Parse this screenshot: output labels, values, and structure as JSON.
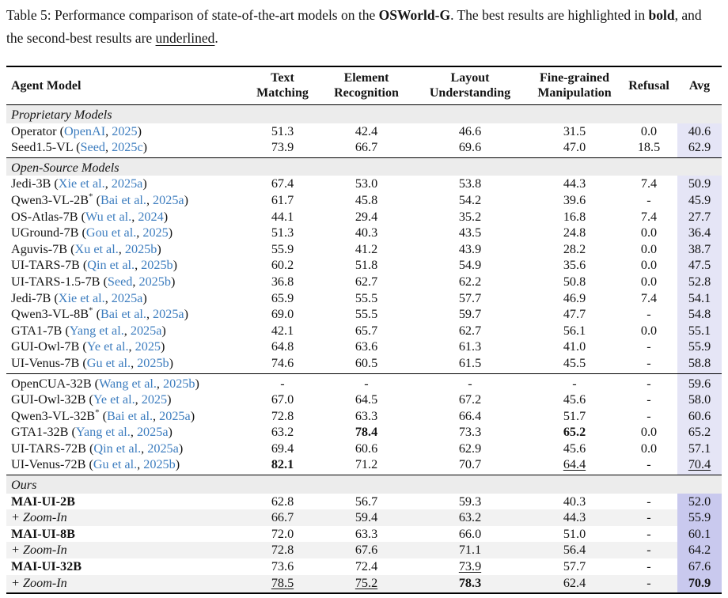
{
  "caption": {
    "parts": [
      {
        "text": "Table 5: Performance comparison of state-of-the-art models on the ",
        "style": "normal"
      },
      {
        "text": "OSWorld-G",
        "style": "bold"
      },
      {
        "text": ". The best results are highlighted in ",
        "style": "normal"
      },
      {
        "text": "bold",
        "style": "bold"
      },
      {
        "text": ", and the second-best results are ",
        "style": "normal"
      },
      {
        "text": "underlined",
        "style": "underline"
      },
      {
        "text": ".",
        "style": "normal"
      }
    ]
  },
  "colors": {
    "citation_blue": "#3d7dbf",
    "section_row_bg": "#ececec",
    "zoom_row_bg": "#f2f2f2",
    "avg_col_bg": "#e5e5f6",
    "avg_col_bg_ours": "#c9c9ee",
    "rule_color": "#000000"
  },
  "table": {
    "columns": [
      {
        "id": "model",
        "lines": [
          "Agent Model"
        ]
      },
      {
        "id": "text-matching",
        "lines": [
          "Text",
          "Matching"
        ]
      },
      {
        "id": "element-recognition",
        "lines": [
          "Element",
          "Recognition"
        ]
      },
      {
        "id": "layout-understanding",
        "lines": [
          "Layout",
          "Understanding"
        ]
      },
      {
        "id": "fine-grained-manipulation",
        "lines": [
          "Fine-grained",
          "Manipulation"
        ]
      },
      {
        "id": "refusal",
        "lines": [
          "Refusal"
        ]
      },
      {
        "id": "avg",
        "lines": [
          "Avg"
        ]
      }
    ],
    "sections": [
      {
        "label": "Proprietary Models",
        "avg_style": "normal",
        "rows": [
          {
            "model": "Operator",
            "cite": {
              "authors": "OpenAI",
              "year": "2025"
            },
            "values": [
              "51.3",
              "42.4",
              "46.6",
              "31.5",
              "0.0",
              "40.6"
            ]
          },
          {
            "model": "Seed1.5-VL",
            "cite": {
              "authors": "Seed",
              "year": "2025c"
            },
            "values": [
              "73.9",
              "66.7",
              "69.6",
              "47.0",
              "18.5",
              "62.9"
            ]
          }
        ]
      },
      {
        "label": "Open-Source Models",
        "avg_style": "normal",
        "rows": [
          {
            "model": "Jedi-3B",
            "cite": {
              "authors": "Xie et al.",
              "year": "2025a"
            },
            "values": [
              "67.4",
              "53.0",
              "53.8",
              "44.3",
              "7.4",
              "50.9"
            ]
          },
          {
            "model": "Qwen3-VL-2B*",
            "cite": {
              "authors": "Bai et al.",
              "year": "2025a"
            },
            "values": [
              "61.7",
              "45.8",
              "54.2",
              "39.6",
              "-",
              "45.9"
            ]
          },
          {
            "model": "OS-Atlas-7B",
            "cite": {
              "authors": "Wu et al.",
              "year": "2024"
            },
            "values": [
              "44.1",
              "29.4",
              "35.2",
              "16.8",
              "7.4",
              "27.7"
            ]
          },
          {
            "model": "UGround-7B",
            "cite": {
              "authors": "Gou et al.",
              "year": "2025"
            },
            "values": [
              "51.3",
              "40.3",
              "43.5",
              "24.8",
              "0.0",
              "36.4"
            ]
          },
          {
            "model": "Aguvis-7B",
            "cite": {
              "authors": "Xu et al.",
              "year": "2025b"
            },
            "values": [
              "55.9",
              "41.2",
              "43.9",
              "28.2",
              "0.0",
              "38.7"
            ]
          },
          {
            "model": "UI-TARS-7B",
            "cite": {
              "authors": "Qin et al.",
              "year": "2025b"
            },
            "values": [
              "60.2",
              "51.8",
              "54.9",
              "35.6",
              "0.0",
              "47.5"
            ]
          },
          {
            "model": "UI-TARS-1.5-7B",
            "cite": {
              "authors": "Seed",
              "year": "2025b"
            },
            "values": [
              "36.8",
              "62.7",
              "62.2",
              "50.8",
              "0.0",
              "52.8"
            ]
          },
          {
            "model": "Jedi-7B",
            "cite": {
              "authors": "Xie et al.",
              "year": "2025a"
            },
            "values": [
              "65.9",
              "55.5",
              "57.7",
              "46.9",
              "7.4",
              "54.1"
            ]
          },
          {
            "model": "Qwen3-VL-8B*",
            "cite": {
              "authors": "Bai et al.",
              "year": "2025a"
            },
            "values": [
              "69.0",
              "55.5",
              "59.7",
              "47.7",
              "-",
              "54.8"
            ]
          },
          {
            "model": "GTA1-7B",
            "cite": {
              "authors": "Yang et al.",
              "year": "2025a"
            },
            "values": [
              "42.1",
              "65.7",
              "62.7",
              "56.1",
              "0.0",
              "55.1"
            ]
          },
          {
            "model": "GUI-Owl-7B",
            "cite": {
              "authors": "Ye et al.",
              "year": "2025"
            },
            "values": [
              "64.8",
              "63.6",
              "61.3",
              "41.0",
              "-",
              "55.9"
            ]
          },
          {
            "model": "UI-Venus-7B",
            "cite": {
              "authors": "Gu et al.",
              "year": "2025b"
            },
            "values": [
              "74.6",
              "60.5",
              "61.5",
              "45.5",
              "-",
              "58.8"
            ]
          }
        ]
      },
      {
        "label": null,
        "avg_style": "normal",
        "rows": [
          {
            "model": "OpenCUA-32B",
            "cite": {
              "authors": "Wang et al.",
              "year": "2025b"
            },
            "values": [
              "-",
              "-",
              "-",
              "-",
              "-",
              "59.6"
            ]
          },
          {
            "model": "GUI-Owl-32B",
            "cite": {
              "authors": "Ye et al.",
              "year": "2025"
            },
            "values": [
              "67.0",
              "64.5",
              "67.2",
              "45.6",
              "-",
              "58.0"
            ]
          },
          {
            "model": "Qwen3-VL-32B*",
            "cite": {
              "authors": "Bai et al.",
              "year": "2025a"
            },
            "values": [
              "72.8",
              "63.3",
              "66.4",
              "51.7",
              "-",
              "60.6"
            ]
          },
          {
            "model": "GTA1-32B",
            "cite": {
              "authors": "Yang et al.",
              "year": "2025a"
            },
            "values": [
              "63.2",
              {
                "t": "78.4",
                "style": "bold"
              },
              "73.3",
              {
                "t": "65.2",
                "style": "bold"
              },
              "0.0",
              "65.2"
            ]
          },
          {
            "model": "UI-TARS-72B",
            "cite": {
              "authors": "Qin et al.",
              "year": "2025a"
            },
            "values": [
              "69.4",
              "60.6",
              "62.9",
              "45.6",
              "0.0",
              "57.1"
            ]
          },
          {
            "model": "UI-Venus-72B",
            "cite": {
              "authors": "Gu et al.",
              "year": "2025b"
            },
            "values": [
              {
                "t": "82.1",
                "style": "bold"
              },
              "71.2",
              "70.7",
              {
                "t": "64.4",
                "style": "underline"
              },
              "-",
              {
                "t": "70.4",
                "style": "underline"
              }
            ]
          }
        ]
      },
      {
        "label": "Ours",
        "avg_style": "ours",
        "rows": [
          {
            "model": "MAI-UI-2B",
            "cite": null,
            "name_style": "bold",
            "values": [
              "62.8",
              "56.7",
              "59.3",
              "40.3",
              "-",
              "52.0"
            ]
          },
          {
            "model": "+ Zoom-In",
            "cite": null,
            "name_style": "italic",
            "row_bg": "gray",
            "values": [
              "66.7",
              "59.4",
              "63.2",
              "44.3",
              "-",
              "55.9"
            ]
          },
          {
            "model": "MAI-UI-8B",
            "cite": null,
            "name_style": "bold",
            "values": [
              "72.0",
              "63.3",
              "66.0",
              "51.0",
              "-",
              "60.1"
            ]
          },
          {
            "model": "+ Zoom-In",
            "cite": null,
            "name_style": "italic",
            "row_bg": "gray",
            "values": [
              "72.8",
              "67.6",
              "71.1",
              "56.4",
              "-",
              "64.2"
            ]
          },
          {
            "model": "MAI-UI-32B",
            "cite": null,
            "name_style": "bold",
            "values": [
              "73.6",
              "72.4",
              {
                "t": "73.9",
                "style": "underline"
              },
              "57.7",
              "-",
              "67.6"
            ]
          },
          {
            "model": "+ Zoom-In",
            "cite": null,
            "name_style": "italic",
            "row_bg": "gray",
            "values": [
              {
                "t": "78.5",
                "style": "underline"
              },
              {
                "t": "75.2",
                "style": "underline"
              },
              {
                "t": "78.3",
                "style": "bold"
              },
              "62.4",
              "-",
              {
                "t": "70.9",
                "style": "bold"
              }
            ]
          }
        ]
      }
    ]
  }
}
